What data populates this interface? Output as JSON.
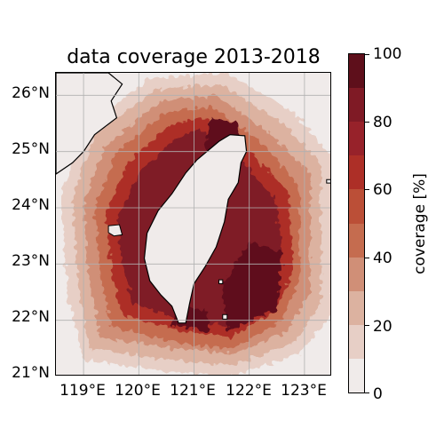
{
  "title": "data coverage 2013-2018",
  "lat_labels": [
    "26°N",
    "25°N",
    "24°N",
    "23°N",
    "22°N",
    "21°N"
  ],
  "lon_labels": [
    "119°E",
    "120°E",
    "121°E",
    "122°E",
    "123°E"
  ],
  "colorbar": {
    "label": "coverage [%]",
    "ticks": [
      "0",
      "20",
      "40",
      "60",
      "80",
      "100"
    ],
    "colors": [
      "#f0ebea",
      "#e7cfc6",
      "#dcb2a0",
      "#d08f77",
      "#c56c4f",
      "#bb4f37",
      "#ad2f27",
      "#97222a",
      "#7f1a25",
      "#5e0f1b"
    ]
  },
  "colors": {
    "land": "#f0ebea",
    "coast": "#000000",
    "grid": "#b0b0b0"
  },
  "chart_data": {
    "type": "heatmap",
    "title": "data coverage 2013-2018",
    "variable": "coverage",
    "unit": "%",
    "xlim": [
      118.5,
      123.5
    ],
    "ylim": [
      21.0,
      26.4
    ],
    "clim": [
      0,
      100
    ],
    "levels": [
      0,
      10,
      20,
      30,
      40,
      50,
      60,
      70,
      80,
      90,
      100
    ],
    "x_ticks": [
      119,
      120,
      121,
      122,
      123
    ],
    "y_ticks": [
      21,
      22,
      23,
      24,
      25,
      26
    ],
    "grid": true,
    "colorbar_position": "right",
    "regions": [
      {
        "area": "Taiwan Strait near coast",
        "coverage_range": [
          70,
          90
        ]
      },
      {
        "area": "east of Taiwan",
        "coverage_range": [
          80,
          100
        ]
      },
      {
        "area": "southeast of Taiwan",
        "coverage_range": [
          90,
          100
        ]
      },
      {
        "area": "outer fringe",
        "coverage_range": [
          10,
          40
        ]
      }
    ]
  }
}
